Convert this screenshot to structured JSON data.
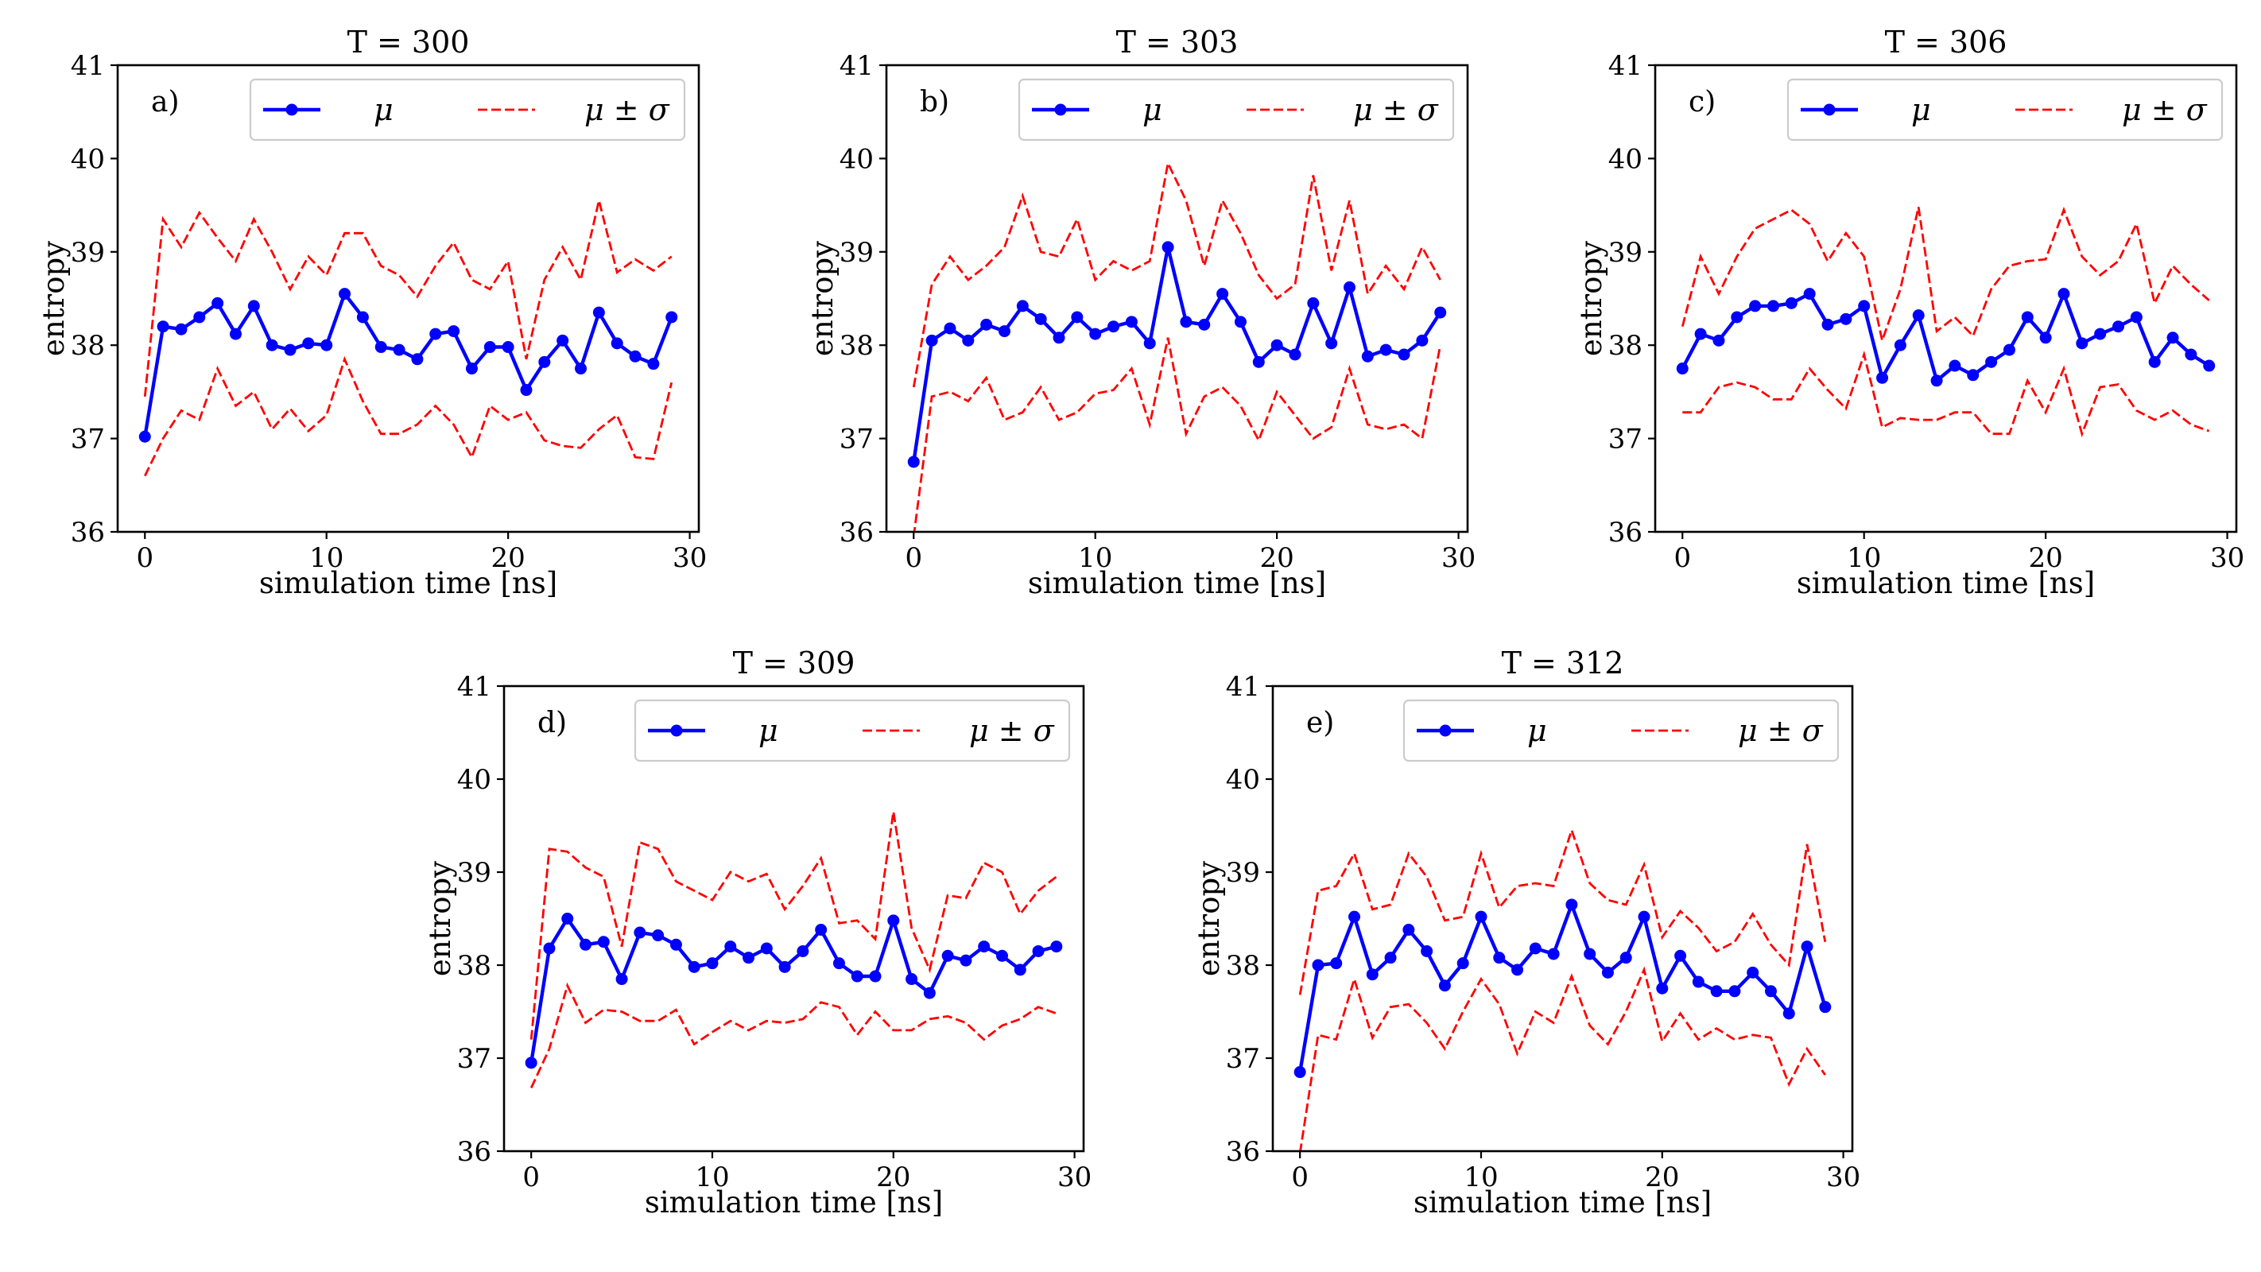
{
  "figure": {
    "mean_color": "#0000ff",
    "band_color": "#ff0000"
  },
  "chart_data": [
    {
      "type": "line",
      "panel": "a)",
      "title": "T = 300",
      "xlabel": "simulation time [ns]",
      "ylabel": "entropy",
      "xlim": [
        -1.5,
        30.5
      ],
      "ylim": [
        36,
        41
      ],
      "xticks": [
        0,
        10,
        20,
        30
      ],
      "yticks": [
        36,
        37,
        38,
        39,
        40,
        41
      ],
      "legend": {
        "mean": "μ",
        "band": "μ ± σ",
        "location": "top-right"
      },
      "x": [
        0,
        1,
        2,
        3,
        4,
        5,
        6,
        7,
        8,
        9,
        10,
        11,
        12,
        13,
        14,
        15,
        16,
        17,
        18,
        19,
        20,
        21,
        22,
        23,
        24,
        25,
        26,
        27,
        28,
        29
      ],
      "series": [
        {
          "name": "μ",
          "values": [
            37.02,
            38.2,
            38.17,
            38.3,
            38.45,
            38.12,
            38.42,
            38.0,
            37.95,
            38.02,
            38.0,
            38.55,
            38.3,
            37.98,
            37.95,
            37.85,
            38.12,
            38.15,
            37.75,
            37.98,
            37.98,
            37.52,
            37.82,
            38.05,
            37.75,
            38.35,
            38.02,
            37.88,
            37.8,
            38.3
          ]
        },
        {
          "name": "μ + σ",
          "values": [
            37.45,
            39.35,
            39.05,
            39.42,
            39.15,
            38.9,
            39.35,
            39.0,
            38.6,
            38.95,
            38.75,
            39.2,
            39.2,
            38.85,
            38.75,
            38.52,
            38.85,
            39.1,
            38.7,
            38.6,
            38.9,
            37.85,
            38.7,
            39.05,
            38.7,
            39.55,
            38.78,
            38.92,
            38.8,
            38.95
          ]
        },
        {
          "name": "μ − σ",
          "values": [
            36.6,
            37.0,
            37.3,
            37.2,
            37.75,
            37.35,
            37.5,
            37.1,
            37.32,
            37.08,
            37.25,
            37.85,
            37.4,
            37.05,
            37.05,
            37.15,
            37.35,
            37.15,
            36.8,
            37.35,
            37.2,
            37.28,
            36.98,
            36.92,
            36.9,
            37.1,
            37.25,
            36.8,
            36.78,
            37.6
          ]
        }
      ]
    },
    {
      "type": "line",
      "panel": "b)",
      "title": "T = 303",
      "xlabel": "simulation time [ns]",
      "ylabel": "entropy",
      "xlim": [
        -1.5,
        30.5
      ],
      "ylim": [
        36,
        41
      ],
      "xticks": [
        0,
        10,
        20,
        30
      ],
      "yticks": [
        36,
        37,
        38,
        39,
        40,
        41
      ],
      "legend": {
        "mean": "μ",
        "band": "μ ± σ",
        "location": "top-right"
      },
      "x": [
        0,
        1,
        2,
        3,
        4,
        5,
        6,
        7,
        8,
        9,
        10,
        11,
        12,
        13,
        14,
        15,
        16,
        17,
        18,
        19,
        20,
        21,
        22,
        23,
        24,
        25,
        26,
        27,
        28,
        29
      ],
      "series": [
        {
          "name": "μ",
          "values": [
            36.75,
            38.05,
            38.18,
            38.05,
            38.22,
            38.15,
            38.42,
            38.28,
            38.08,
            38.3,
            38.12,
            38.2,
            38.25,
            38.02,
            39.05,
            38.25,
            38.22,
            38.55,
            38.25,
            37.82,
            38.0,
            37.9,
            38.45,
            38.02,
            38.62,
            37.88,
            37.95,
            37.9,
            38.05,
            38.35
          ]
        },
        {
          "name": "μ + σ",
          "values": [
            37.55,
            38.65,
            38.95,
            38.7,
            38.85,
            39.05,
            39.6,
            39.0,
            38.95,
            39.35,
            38.7,
            38.9,
            38.8,
            38.9,
            39.95,
            39.55,
            38.85,
            39.55,
            39.2,
            38.75,
            38.5,
            38.65,
            39.82,
            38.8,
            39.55,
            38.55,
            38.85,
            38.6,
            39.05,
            38.7
          ]
        },
        {
          "name": "μ − σ",
          "values": [
            35.95,
            37.45,
            37.5,
            37.4,
            37.65,
            37.2,
            37.28,
            37.55,
            37.2,
            37.28,
            37.48,
            37.52,
            37.75,
            37.15,
            38.08,
            37.05,
            37.45,
            37.55,
            37.35,
            36.98,
            37.5,
            37.25,
            37.0,
            37.12,
            37.75,
            37.15,
            37.1,
            37.15,
            37.0,
            38.0
          ]
        }
      ]
    },
    {
      "type": "line",
      "panel": "c)",
      "title": "T = 306",
      "xlabel": "simulation time [ns]",
      "ylabel": "entropy",
      "xlim": [
        -1.5,
        30.5
      ],
      "ylim": [
        36,
        41
      ],
      "xticks": [
        0,
        10,
        20,
        30
      ],
      "yticks": [
        36,
        37,
        38,
        39,
        40,
        41
      ],
      "legend": {
        "mean": "μ",
        "band": "μ ± σ",
        "location": "top-right"
      },
      "x": [
        0,
        1,
        2,
        3,
        4,
        5,
        6,
        7,
        8,
        9,
        10,
        11,
        12,
        13,
        14,
        15,
        16,
        17,
        18,
        19,
        20,
        21,
        22,
        23,
        24,
        25,
        26,
        27,
        28,
        29
      ],
      "series": [
        {
          "name": "μ",
          "values": [
            37.75,
            38.12,
            38.05,
            38.3,
            38.42,
            38.42,
            38.45,
            38.55,
            38.22,
            38.28,
            38.42,
            37.65,
            38.0,
            38.32,
            37.62,
            37.78,
            37.68,
            37.82,
            37.95,
            38.3,
            38.08,
            38.55,
            38.02,
            38.12,
            38.2,
            38.3,
            37.82,
            38.08,
            37.9,
            37.78
          ]
        },
        {
          "name": "μ + σ",
          "values": [
            38.2,
            38.95,
            38.55,
            38.95,
            39.25,
            39.35,
            39.45,
            39.3,
            38.9,
            39.2,
            38.95,
            38.05,
            38.6,
            39.48,
            38.15,
            38.3,
            38.1,
            38.6,
            38.85,
            38.9,
            38.92,
            39.45,
            38.95,
            38.75,
            38.9,
            39.3,
            38.45,
            38.85,
            38.65,
            38.48
          ]
        },
        {
          "name": "μ − σ",
          "values": [
            37.28,
            37.28,
            37.55,
            37.6,
            37.55,
            37.42,
            37.42,
            37.75,
            37.52,
            37.32,
            37.9,
            37.12,
            37.22,
            37.2,
            37.2,
            37.28,
            37.28,
            37.05,
            37.05,
            37.62,
            37.28,
            37.75,
            37.05,
            37.55,
            37.58,
            37.3,
            37.2,
            37.3,
            37.15,
            37.08
          ]
        }
      ]
    },
    {
      "type": "line",
      "panel": "d)",
      "title": "T = 309",
      "xlabel": "simulation time [ns]",
      "ylabel": "entropy",
      "xlim": [
        -1.5,
        30.5
      ],
      "ylim": [
        36,
        41
      ],
      "xticks": [
        0,
        10,
        20,
        30
      ],
      "yticks": [
        36,
        37,
        38,
        39,
        40,
        41
      ],
      "legend": {
        "mean": "μ",
        "band": "μ ± σ",
        "location": "top-right"
      },
      "x": [
        0,
        1,
        2,
        3,
        4,
        5,
        6,
        7,
        8,
        9,
        10,
        11,
        12,
        13,
        14,
        15,
        16,
        17,
        18,
        19,
        20,
        21,
        22,
        23,
        24,
        25,
        26,
        27,
        28,
        29
      ],
      "series": [
        {
          "name": "μ",
          "values": [
            36.95,
            38.18,
            38.5,
            38.22,
            38.25,
            37.85,
            38.35,
            38.32,
            38.22,
            37.98,
            38.02,
            38.2,
            38.08,
            38.18,
            37.98,
            38.15,
            38.38,
            38.02,
            37.88,
            37.88,
            38.48,
            37.85,
            37.7,
            38.1,
            38.05,
            38.2,
            38.1,
            37.95,
            38.15,
            38.2
          ]
        },
        {
          "name": "μ + σ",
          "values": [
            37.2,
            39.25,
            39.22,
            39.05,
            38.95,
            38.2,
            39.32,
            39.25,
            38.9,
            38.8,
            38.7,
            39.0,
            38.9,
            38.98,
            38.6,
            38.85,
            39.15,
            38.45,
            38.48,
            38.28,
            39.65,
            38.4,
            37.95,
            38.75,
            38.72,
            39.1,
            39.0,
            38.55,
            38.8,
            38.95
          ]
        },
        {
          "name": "μ − σ",
          "values": [
            36.68,
            37.1,
            37.78,
            37.38,
            37.52,
            37.5,
            37.4,
            37.4,
            37.52,
            37.15,
            37.28,
            37.4,
            37.3,
            37.4,
            37.38,
            37.42,
            37.6,
            37.55,
            37.25,
            37.5,
            37.3,
            37.3,
            37.42,
            37.45,
            37.38,
            37.2,
            37.35,
            37.42,
            37.55,
            37.48
          ]
        }
      ]
    },
    {
      "type": "line",
      "panel": "e)",
      "title": "T = 312",
      "xlabel": "simulation time [ns]",
      "ylabel": "entropy",
      "xlim": [
        -1.5,
        30.5
      ],
      "ylim": [
        36,
        41
      ],
      "xticks": [
        0,
        10,
        20,
        30
      ],
      "yticks": [
        36,
        37,
        38,
        39,
        40,
        41
      ],
      "legend": {
        "mean": "μ",
        "band": "μ ± σ",
        "location": "top-right"
      },
      "x": [
        0,
        1,
        2,
        3,
        4,
        5,
        6,
        7,
        8,
        9,
        10,
        11,
        12,
        13,
        14,
        15,
        16,
        17,
        18,
        19,
        20,
        21,
        22,
        23,
        24,
        25,
        26,
        27,
        28,
        29
      ],
      "series": [
        {
          "name": "μ",
          "values": [
            36.85,
            38.0,
            38.02,
            38.52,
            37.9,
            38.08,
            38.38,
            38.15,
            37.78,
            38.02,
            38.52,
            38.08,
            37.95,
            38.18,
            38.12,
            38.65,
            38.12,
            37.92,
            38.08,
            38.52,
            37.75,
            38.1,
            37.82,
            37.72,
            37.72,
            37.92,
            37.72,
            37.48,
            38.2,
            37.55
          ]
        },
        {
          "name": "μ + σ",
          "values": [
            37.68,
            38.8,
            38.85,
            39.2,
            38.6,
            38.65,
            39.2,
            38.95,
            38.48,
            38.52,
            39.2,
            38.62,
            38.85,
            38.88,
            38.85,
            39.45,
            38.88,
            38.7,
            38.65,
            39.08,
            38.3,
            38.58,
            38.4,
            38.15,
            38.25,
            38.55,
            38.22,
            38.0,
            39.3,
            38.25
          ]
        },
        {
          "name": "μ − σ",
          "values": [
            35.98,
            37.25,
            37.2,
            37.85,
            37.22,
            37.55,
            37.58,
            37.38,
            37.1,
            37.5,
            37.85,
            37.58,
            37.05,
            37.5,
            37.38,
            37.88,
            37.35,
            37.15,
            37.5,
            37.95,
            37.18,
            37.48,
            37.2,
            37.32,
            37.2,
            37.25,
            37.22,
            36.72,
            37.1,
            36.82
          ]
        }
      ]
    }
  ]
}
